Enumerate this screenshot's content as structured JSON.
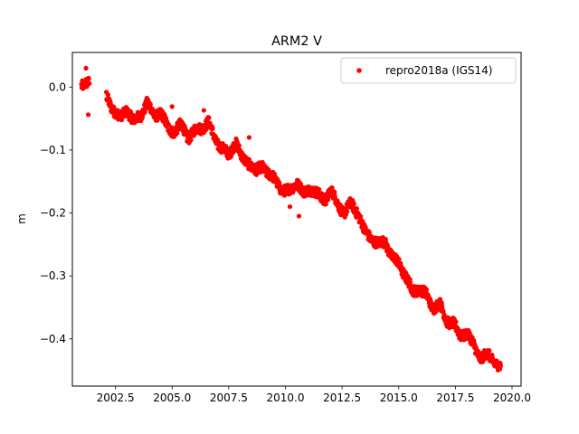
{
  "chart_data": {
    "type": "scatter",
    "title": "ARM2 V",
    "xlabel": "",
    "ylabel": "m",
    "xlim": [
      2000.6,
      2020.4
    ],
    "ylim": [
      -0.475,
      0.055
    ],
    "xticks": [
      2002.5,
      2005.0,
      2007.5,
      2010.0,
      2012.5,
      2015.0,
      2017.5,
      2020.0
    ],
    "xtick_labels": [
      "2002.5",
      "2005.0",
      "2007.5",
      "2010.0",
      "2012.5",
      "2015.0",
      "2017.5",
      "2020.0"
    ],
    "yticks": [
      0.0,
      -0.1,
      -0.2,
      -0.3,
      -0.4
    ],
    "ytick_labels": [
      "0.0",
      "−0.1",
      "−0.2",
      "−0.3",
      "−0.4"
    ],
    "grid": false,
    "legend_position": "top-right",
    "marker_color": "#ff0000",
    "series": [
      {
        "name": "repro2018a (IGS14)",
        "color": "#ff0000",
        "trend": {
          "x": [
            2001.0,
            2001.3,
            2002.1,
            2002.4,
            2002.7,
            2003.0,
            2003.3,
            2003.6,
            2003.9,
            2004.2,
            2004.5,
            2004.8,
            2005.1,
            2005.4,
            2005.7,
            2006.0,
            2006.3,
            2006.6,
            2006.9,
            2007.2,
            2007.5,
            2007.8,
            2008.1,
            2008.4,
            2008.7,
            2009.0,
            2009.3,
            2009.6,
            2009.9,
            2010.2,
            2010.5,
            2010.8,
            2011.1,
            2011.4,
            2011.7,
            2012.0,
            2012.3,
            2012.6,
            2012.9,
            2013.2,
            2013.5,
            2013.8,
            2014.1,
            2014.4,
            2014.7,
            2015.0,
            2015.3,
            2015.6,
            2015.9,
            2016.2,
            2016.5,
            2016.8,
            2017.1,
            2017.4,
            2017.7,
            2018.0,
            2018.3,
            2018.6,
            2018.9,
            2019.2,
            2019.5
          ],
          "y": [
            0.005,
            0.005,
            -0.015,
            -0.035,
            -0.05,
            -0.035,
            -0.055,
            -0.045,
            -0.025,
            -0.045,
            -0.04,
            -0.065,
            -0.07,
            -0.06,
            -0.08,
            -0.07,
            -0.065,
            -0.055,
            -0.085,
            -0.095,
            -0.11,
            -0.085,
            -0.115,
            -0.12,
            -0.135,
            -0.125,
            -0.14,
            -0.15,
            -0.165,
            -0.165,
            -0.15,
            -0.17,
            -0.16,
            -0.17,
            -0.18,
            -0.165,
            -0.185,
            -0.2,
            -0.185,
            -0.2,
            -0.23,
            -0.24,
            -0.25,
            -0.245,
            -0.27,
            -0.28,
            -0.3,
            -0.325,
            -0.32,
            -0.33,
            -0.35,
            -0.345,
            -0.37,
            -0.375,
            -0.395,
            -0.39,
            -0.41,
            -0.43,
            -0.425,
            -0.435,
            -0.445
          ]
        },
        "outliers": [
          {
            "x": 2001.2,
            "y": 0.03
          },
          {
            "x": 2001.3,
            "y": -0.044
          },
          {
            "x": 2005.0,
            "y": -0.031
          },
          {
            "x": 2006.4,
            "y": -0.037
          },
          {
            "x": 2008.4,
            "y": -0.08
          },
          {
            "x": 2010.6,
            "y": -0.205
          },
          {
            "x": 2010.2,
            "y": -0.19
          }
        ]
      }
    ]
  }
}
